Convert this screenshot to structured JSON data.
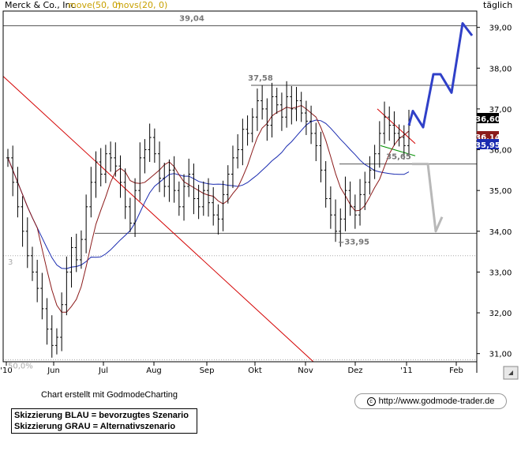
{
  "chart_data": {
    "type": "line",
    "title": "Merck & Co., Inc",
    "indicators": [
      {
        "name": "move(50, 0)",
        "color": "#c8a000"
      },
      {
        "name": "movs(20, 0)",
        "color": "#c8a000"
      }
    ],
    "period_label": "täglich",
    "ylim": [
      30.8,
      39.4
    ],
    "y_ticks": [
      "31,00",
      "32,00",
      "33,00",
      "34,00",
      "35,00",
      "36,00",
      "37,00",
      "38,00",
      "39,00"
    ],
    "x_ticks": [
      "'10",
      "Jun",
      "Jul",
      "Aug",
      "Sep",
      "Okt",
      "Nov",
      "Dez",
      "'11",
      "Feb"
    ],
    "price_labels": [
      {
        "text": "36,60",
        "value": 36.6,
        "color": "#000000",
        "text_color": "#ffffff"
      },
      {
        "text": "36,14",
        "value": 36.14,
        "color": "#8b1a1a",
        "text_color": "#ffffff"
      },
      {
        "text": "35,95",
        "value": 35.95,
        "color": "#1a2bb0",
        "text_color": "#ffffff"
      }
    ],
    "horizontal_lines": [
      {
        "value": 39.04,
        "label": "39,04"
      },
      {
        "value": 37.58,
        "label": "37,58"
      },
      {
        "value": 35.65,
        "label": "35,65"
      },
      {
        "value": 33.95,
        "label": "~33,95"
      }
    ],
    "dotted_lines": [
      {
        "value": 33.4,
        "label": "3"
      },
      {
        "value": 30.85,
        "label": "50,0%"
      }
    ],
    "price_series": [
      [
        0,
        35.8
      ],
      [
        2,
        35.2
      ],
      [
        4,
        34.6
      ],
      [
        6,
        34.0
      ],
      [
        8,
        33.4
      ],
      [
        10,
        33.0
      ],
      [
        12,
        32.6
      ],
      [
        14,
        32.1
      ],
      [
        16,
        31.6
      ],
      [
        18,
        31.2
      ],
      [
        20,
        31.4
      ],
      [
        22,
        32.2
      ],
      [
        24,
        33.0
      ],
      [
        26,
        33.6
      ],
      [
        28,
        33.3
      ],
      [
        30,
        33.8
      ],
      [
        32,
        34.6
      ],
      [
        34,
        35.2
      ],
      [
        36,
        35.7
      ],
      [
        38,
        35.4
      ],
      [
        40,
        35.9
      ],
      [
        42,
        35.8
      ],
      [
        44,
        35.6
      ],
      [
        46,
        35.2
      ],
      [
        48,
        34.6
      ],
      [
        50,
        34.2
      ],
      [
        52,
        35.0
      ],
      [
        54,
        35.8
      ],
      [
        56,
        36.0
      ],
      [
        58,
        36.3
      ],
      [
        60,
        35.9
      ],
      [
        62,
        35.3
      ],
      [
        64,
        35.1
      ],
      [
        66,
        35.5
      ],
      [
        68,
        35.0
      ],
      [
        70,
        34.6
      ],
      [
        72,
        35.1
      ],
      [
        74,
        35.4
      ],
      [
        76,
        34.8
      ],
      [
        78,
        34.6
      ],
      [
        80,
        35.0
      ],
      [
        82,
        34.7
      ],
      [
        84,
        34.4
      ],
      [
        86,
        34.3
      ],
      [
        88,
        34.9
      ],
      [
        90,
        35.4
      ],
      [
        92,
        35.8
      ],
      [
        94,
        36.0
      ],
      [
        96,
        36.5
      ],
      [
        98,
        36.4
      ],
      [
        100,
        36.8
      ],
      [
        102,
        37.2
      ],
      [
        104,
        37.0
      ],
      [
        106,
        36.6
      ],
      [
        108,
        37.3
      ],
      [
        110,
        37.1
      ],
      [
        112,
        36.8
      ],
      [
        114,
        37.3
      ],
      [
        116,
        37.0
      ],
      [
        118,
        37.2
      ],
      [
        120,
        36.9
      ],
      [
        122,
        36.7
      ],
      [
        124,
        36.4
      ],
      [
        126,
        36.1
      ],
      [
        128,
        35.5
      ],
      [
        130,
        34.8
      ],
      [
        132,
        34.4
      ],
      [
        134,
        34.0
      ],
      [
        136,
        34.3
      ],
      [
        138,
        35.0
      ],
      [
        140,
        34.6
      ],
      [
        142,
        34.4
      ],
      [
        144,
        34.9
      ],
      [
        146,
        35.2
      ],
      [
        148,
        35.5
      ],
      [
        150,
        35.9
      ],
      [
        152,
        36.4
      ],
      [
        154,
        36.8
      ],
      [
        156,
        36.6
      ],
      [
        158,
        36.4
      ],
      [
        160,
        36.3
      ],
      [
        162,
        36.1
      ],
      [
        164,
        36.6
      ]
    ],
    "scenario_blue": [
      [
        36.6,
        0
      ],
      [
        36.95,
        1
      ],
      [
        36.55,
        2
      ],
      [
        37.85,
        3
      ],
      [
        37.85,
        4
      ],
      [
        37.4,
        5
      ],
      [
        39.1,
        6
      ],
      [
        38.8,
        7
      ]
    ],
    "scenario_gray": [
      [
        35.65,
        0
      ],
      [
        35.65,
        1
      ],
      [
        34.0,
        2
      ],
      [
        34.35,
        3
      ]
    ],
    "footer_text": "Chart erstellt mit GodmodeCharting",
    "legend_lines": [
      "Skizzierung BLAU = bevorzugtes Szenario",
      "Skizzierung GRAU = Alternativszenario"
    ],
    "url": "http://www.godmode-trader.de",
    "copyright_symbol": "c"
  }
}
